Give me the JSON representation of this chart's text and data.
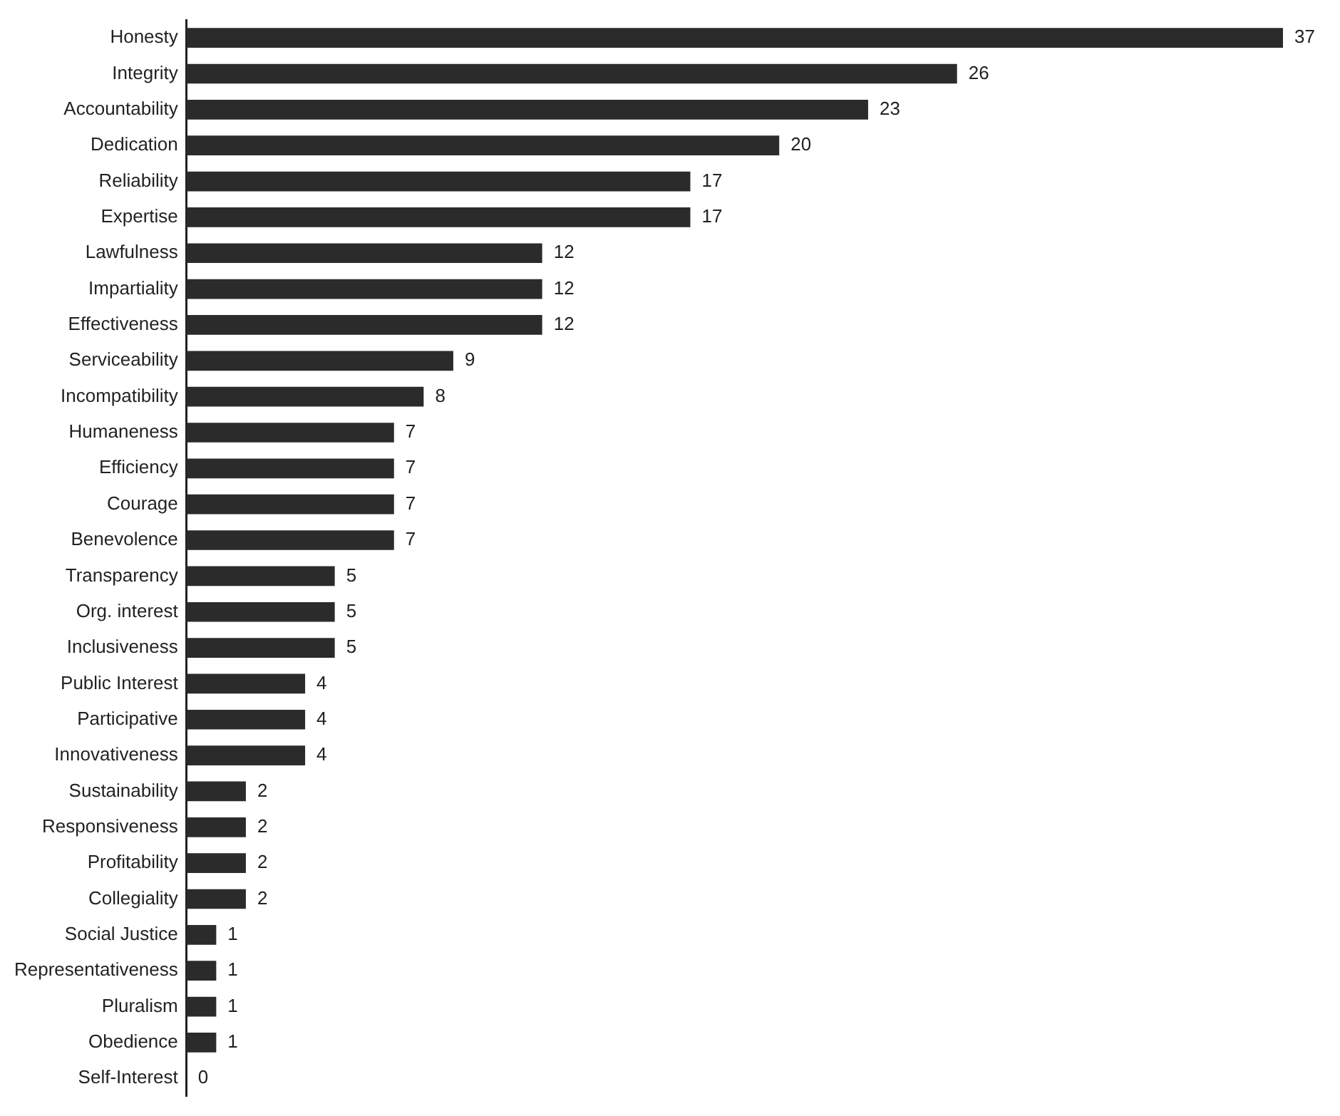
{
  "chart_data": {
    "type": "bar",
    "orientation": "horizontal",
    "data_labels": true,
    "color": "#2b2b2b",
    "categories": [
      "Honesty",
      "Integrity",
      "Accountability",
      "Dedication",
      "Reliability",
      "Expertise",
      "Lawfulness",
      "Impartiality",
      "Effectiveness",
      "Serviceability",
      "Incompatibility",
      "Humaneness",
      "Efficiency",
      "Courage",
      "Benevolence",
      "Transparency",
      "Org. interest",
      "Inclusiveness",
      "Public Interest",
      "Participative",
      "Innovativeness",
      "Sustainability",
      "Responsiveness",
      "Profitability",
      "Collegiality",
      "Social Justice",
      "Representativeness",
      "Pluralism",
      "Obedience",
      "Self-Interest"
    ],
    "values": [
      37,
      26,
      23,
      20,
      17,
      17,
      12,
      12,
      12,
      9,
      8,
      7,
      7,
      7,
      7,
      5,
      5,
      5,
      4,
      4,
      4,
      2,
      2,
      2,
      2,
      1,
      1,
      1,
      1,
      0
    ]
  }
}
